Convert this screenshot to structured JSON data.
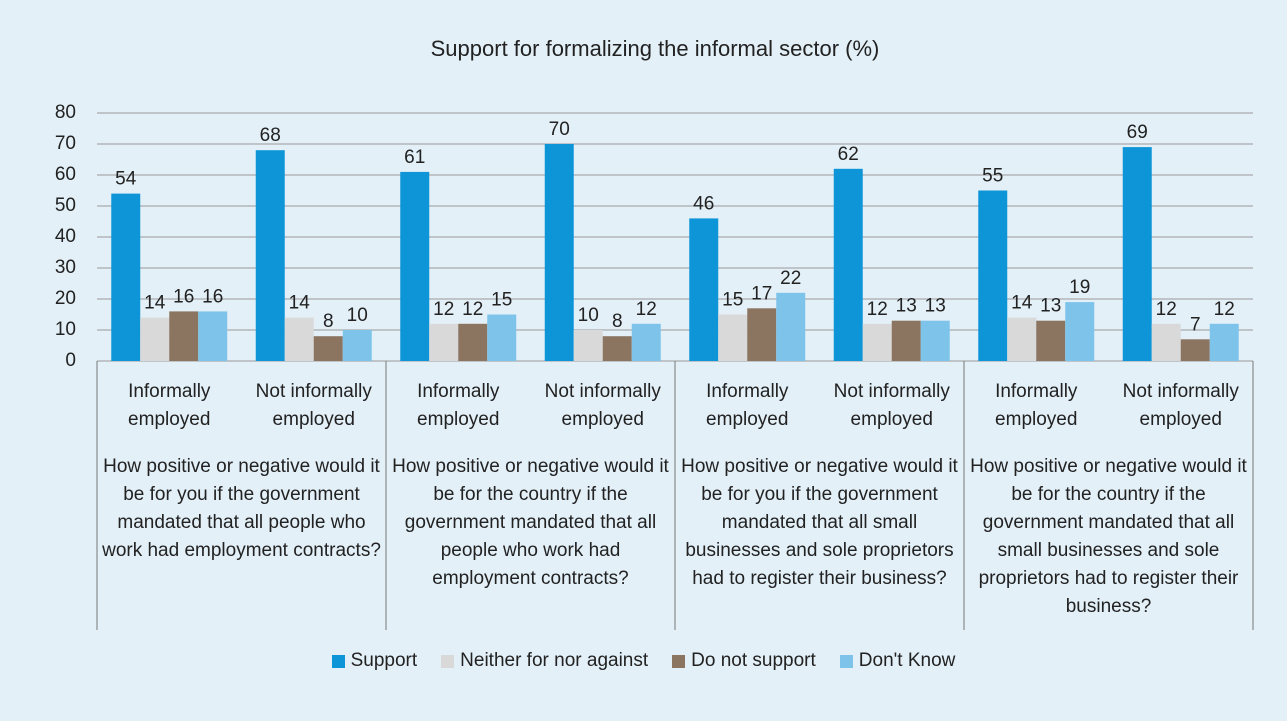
{
  "chart_data": {
    "type": "bar",
    "title": "Support for formalizing the informal sector (%)",
    "categories": [
      "Informally employed",
      "Not informally employed",
      "Informally employed",
      "Not informally employed",
      "Informally employed",
      "Not informally employed",
      "Informally employed",
      "Not informally employed"
    ],
    "groups": [
      "How positive or negative would it be for you if the government mandated that all people who work had employment contracts?",
      "How positive or negative would it be for the country if the government mandated that all people who work had employment contracts?",
      "How positive or negative would it be for you if the government mandated that all small businesses and sole proprietors had to register their business?",
      "How positive or negative would it be for the country if the government mandated that all small businesses and sole proprietors had to register their business?"
    ],
    "series": [
      {
        "name": "Support",
        "color": "#0e95d8",
        "values": [
          54,
          68,
          61,
          70,
          46,
          62,
          55,
          69
        ]
      },
      {
        "name": "Neither for nor against",
        "color": "#d9d9d9",
        "values": [
          14,
          14,
          12,
          10,
          15,
          12,
          14,
          12
        ]
      },
      {
        "name": "Do not support",
        "color": "#8c7560",
        "values": [
          16,
          8,
          12,
          8,
          17,
          13,
          13,
          7
        ]
      },
      {
        "name": "Don't Know",
        "color": "#7ec4ea",
        "values": [
          16,
          10,
          15,
          12,
          22,
          13,
          19,
          12
        ]
      }
    ],
    "ylim": [
      0,
      80
    ],
    "yticks": [
      0,
      10,
      20,
      30,
      40,
      50,
      60,
      70,
      80
    ],
    "grid": true,
    "legend": "bottom"
  }
}
